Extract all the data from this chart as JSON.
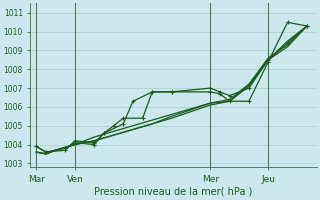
{
  "background_color": "#cce8ee",
  "grid_color": "#aacccc",
  "line_color": "#1a5c1a",
  "xlabel": "Pression niveau de la mer( hPa )",
  "ylim": [
    1002.8,
    1011.5
  ],
  "yticks": [
    1003,
    1004,
    1005,
    1006,
    1007,
    1008,
    1009,
    1010,
    1011
  ],
  "x_tick_labels": [
    "Mar",
    "Ven",
    "Mer",
    "Jeu"
  ],
  "x_tick_positions": [
    0.0,
    2.0,
    9.0,
    12.0
  ],
  "xlim": [
    -0.3,
    14.5
  ],
  "lines": [
    {
      "x": [
        0,
        0.5,
        1.0,
        2.0,
        3.0,
        4.0,
        5.0,
        6.0,
        7.0,
        9.0,
        10.0,
        11.0,
        12.0,
        13.0,
        14.0
      ],
      "y": [
        1003.6,
        1003.5,
        1003.7,
        1004.0,
        1004.4,
        1004.7,
        1005.0,
        1005.3,
        1005.6,
        1006.2,
        1006.4,
        1007.2,
        1008.6,
        1009.3,
        1010.3
      ],
      "marker": false,
      "lw": 0.9
    },
    {
      "x": [
        0,
        0.5,
        1.0,
        2.0,
        3.0,
        4.0,
        5.0,
        6.0,
        7.0,
        9.0,
        10.0,
        11.0,
        12.0,
        13.0,
        14.0
      ],
      "y": [
        1003.6,
        1003.5,
        1003.7,
        1004.0,
        1004.2,
        1004.5,
        1004.8,
        1005.1,
        1005.4,
        1006.1,
        1006.3,
        1007.1,
        1008.5,
        1009.2,
        1010.3
      ],
      "marker": false,
      "lw": 0.9
    },
    {
      "x": [
        0,
        0.5,
        1.0,
        2.0,
        3.0,
        4.0,
        5.0,
        6.0,
        7.0,
        9.0,
        10.0,
        11.0,
        12.0,
        13.0,
        14.0
      ],
      "y": [
        1003.6,
        1003.5,
        1003.7,
        1004.0,
        1004.2,
        1004.5,
        1004.8,
        1005.1,
        1005.5,
        1006.2,
        1006.3,
        1007.2,
        1008.5,
        1009.5,
        1010.3
      ],
      "marker": false,
      "lw": 0.9
    },
    {
      "x": [
        0,
        0.5,
        1.5,
        2.0,
        3.0,
        3.5,
        4.5,
        5.0,
        6.0,
        7.0,
        9.0,
        9.5,
        10.0,
        11.0,
        12.0,
        13.0,
        14.0
      ],
      "y": [
        1003.9,
        1003.6,
        1003.7,
        1004.2,
        1004.1,
        1004.6,
        1005.1,
        1006.3,
        1006.8,
        1006.8,
        1006.8,
        1006.7,
        1006.3,
        1006.3,
        1008.4,
        1010.5,
        1010.3
      ],
      "marker": true,
      "lw": 0.9
    },
    {
      "x": [
        0,
        0.5,
        1.5,
        2.0,
        3.0,
        3.5,
        4.0,
        4.5,
        5.5,
        6.0,
        7.0,
        9.0,
        9.5,
        10.0,
        11.0,
        12.0,
        13.0,
        14.0
      ],
      "y": [
        1003.9,
        1003.6,
        1003.8,
        1004.1,
        1004.0,
        1004.6,
        1005.0,
        1005.4,
        1005.4,
        1006.8,
        1006.8,
        1007.0,
        1006.8,
        1006.6,
        1007.0,
        1008.5,
        1009.4,
        1010.3
      ],
      "marker": true,
      "lw": 0.9
    }
  ],
  "vlines": [
    0.0,
    2.0,
    9.0,
    12.0
  ],
  "figsize": [
    3.2,
    2.0
  ],
  "dpi": 100,
  "font_size_yticks": 5.5,
  "font_size_xticks": 6.5,
  "font_size_xlabel": 7.0
}
